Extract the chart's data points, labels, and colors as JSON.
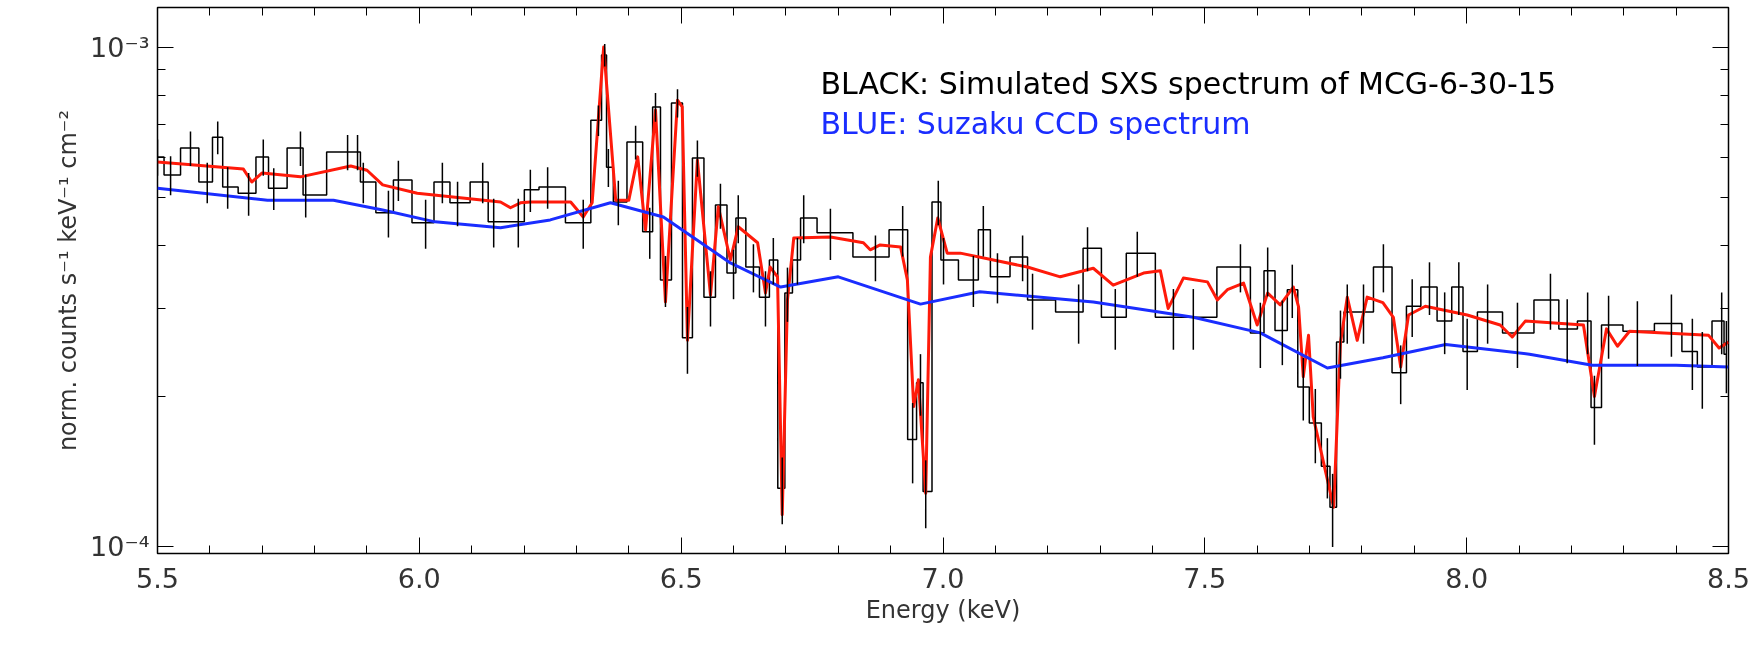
{
  "chart_data": {
    "type": "line",
    "xlabel": "Energy (keV)",
    "ylabel": "norm. counts s⁻¹ keV⁻¹ cm⁻²",
    "log": "y",
    "xlim": [
      5.5,
      8.5
    ],
    "ylim": [
      9.7e-05,
      0.0012
    ],
    "xticks": [
      5.5,
      {
        "value": 5.6,
        "label": null
      },
      {
        "value": 5.7,
        "label": null
      },
      {
        "value": 5.8,
        "label": null
      },
      {
        "value": 5.9,
        "label": null
      },
      "6.0",
      {
        "value": 6.1,
        "label": null
      },
      {
        "value": 6.2,
        "label": null
      },
      {
        "value": 6.3,
        "label": null
      },
      {
        "value": 6.4,
        "label": null
      },
      6.5,
      {
        "value": 6.6,
        "label": null
      },
      {
        "value": 6.7,
        "label": null
      },
      {
        "value": 6.8,
        "label": null
      },
      {
        "value": 6.9,
        "label": null
      },
      {
        "value": 7.0,
        "label": "7.0"
      },
      {
        "value": 7.1,
        "label": null
      },
      {
        "value": 7.2,
        "label": null
      },
      {
        "value": 7.3,
        "label": null
      },
      {
        "value": 7.4,
        "label": null
      },
      7.5,
      {
        "value": 7.6,
        "label": null
      },
      {
        "value": 7.7,
        "label": null
      },
      {
        "value": 7.8,
        "label": null
      },
      {
        "value": 7.9,
        "label": null
      },
      {
        "value": 8.0,
        "label": "8.0"
      },
      {
        "value": 8.1,
        "label": null
      },
      {
        "value": 8.2,
        "label": null
      },
      {
        "value": 8.3,
        "label": null
      },
      {
        "value": 8.4,
        "label": null
      },
      8.5
    ],
    "yticks": [
      {
        "value": 0.0001,
        "label": "10⁻⁴"
      },
      {
        "value": 0.0002,
        "label": null
      },
      {
        "value": 0.0003,
        "label": null
      },
      {
        "value": 0.0004,
        "label": null
      },
      {
        "value": 0.0005,
        "label": null
      },
      {
        "value": 0.0006,
        "label": null
      },
      {
        "value": 0.0007,
        "label": null
      },
      {
        "value": 0.0008,
        "label": null
      },
      {
        "value": 0.0009,
        "label": null
      },
      {
        "value": 0.001,
        "label": "10⁻³"
      }
    ],
    "grid": false,
    "legend": "top right",
    "series": [
      {
        "name": "BLACK: Simulated SXS spectrum of MCG-6-30-15",
        "type": "step",
        "color": "#000000",
        "x": [
          5.5,
          5.525,
          5.563,
          5.595,
          5.615,
          5.634,
          5.674,
          5.702,
          5.722,
          5.773,
          5.783,
          5.863,
          5.882,
          5.893,
          5.941,
          5.96,
          6.012,
          6.044,
          6.073,
          6.121,
          6.142,
          6.189,
          6.212,
          6.245,
          6.313,
          6.342,
          6.354,
          6.361,
          6.38,
          6.413,
          6.44,
          6.451,
          6.47,
          6.493,
          6.512,
          6.531,
          6.556,
          6.575,
          6.6,
          6.609,
          6.638,
          6.661,
          6.676,
          6.693,
          6.703,
          6.722,
          6.734,
          6.785,
          6.871,
          6.923,
          6.942,
          6.957,
          6.967,
          6.991,
          7.001,
          7.058,
          7.077,
          7.104,
          7.152,
          7.171,
          7.259,
          7.276,
          7.329,
          7.371,
          7.44,
          7.478,
          7.568,
          7.606,
          7.62,
          7.648,
          7.667,
          7.688,
          7.711,
          7.734,
          7.744,
          7.759,
          7.772,
          7.803,
          7.841,
          7.874,
          7.896,
          7.929,
          7.958,
          7.985,
          8.001,
          8.04,
          8.097,
          8.16,
          8.192,
          8.231,
          8.244,
          8.271,
          8.326,
          8.391,
          8.431,
          8.45,
          8.487,
          8.496
        ],
        "values": [
          0.000603,
          0.000555,
          0.000628,
          0.000537,
          0.00066,
          0.000525,
          0.00051,
          0.000603,
          0.000522,
          0.000628,
          0.000506,
          0.000617,
          0.000617,
          0.000537,
          0.000466,
          0.000542,
          0.000445,
          0.000537,
          0.000488,
          0.000537,
          0.000447,
          0.000447,
          0.000518,
          0.000525,
          0.000445,
          0.000714,
          0.000964,
          0.000575,
          0.00049,
          0.000646,
          0.000427,
          0.000759,
          0.000342,
          0.000773,
          0.000262,
          0.0006,
          0.000316,
          0.000483,
          0.000353,
          0.000455,
          0.000363,
          0.000316,
          0.000375,
          0.000131,
          0.000322,
          0.000375,
          0.000455,
          0.000425,
          0.00038,
          0.000431,
          0.000164,
          0.000213,
          0.000129,
          0.00049,
          0.000375,
          0.000342,
          0.000431,
          0.000347,
          0.00038,
          0.000312,
          0.000295,
          0.000396,
          0.000288,
          0.000387,
          0.000288,
          0.000288,
          0.000363,
          0.000268,
          0.000357,
          0.000271,
          0.000327,
          0.000209,
          0.000177,
          0.000145,
          0.00012,
          0.000257,
          0.000295,
          0.000295,
          0.000363,
          0.000223,
          0.000303,
          0.000331,
          0.000283,
          0.000331,
          0.000246,
          0.000295,
          0.000268,
          0.000312,
          0.000273,
          0.000283,
          0.00019,
          0.000278,
          0.00027,
          0.00028,
          0.000246,
          0.000229,
          0.000283,
          0.000243
        ],
        "errors": [
          5e-05,
          5e-05,
          5e-05,
          5e-05,
          5e-05,
          5e-05,
          5e-05,
          5e-05,
          5e-05,
          5e-05,
          5e-05,
          5e-05,
          5e-05,
          5e-05,
          5e-05,
          5e-05,
          5e-05,
          5e-05,
          5e-05,
          5e-05,
          5e-05,
          5e-05,
          5e-05,
          5e-05,
          5e-05,
          5e-05,
          5e-05,
          5e-05,
          5e-05,
          5e-05,
          5e-05,
          5e-05,
          4e-05,
          5e-05,
          4e-05,
          5e-05,
          4e-05,
          5e-05,
          4e-05,
          5e-05,
          4e-05,
          4e-05,
          4e-05,
          2e-05,
          4e-05,
          4e-05,
          5e-05,
          5e-05,
          4e-05,
          5e-05,
          3e-05,
          3e-05,
          2e-05,
          5e-05,
          4e-05,
          4e-05,
          5e-05,
          4e-05,
          4e-05,
          4e-05,
          4e-05,
          4e-05,
          4e-05,
          4e-05,
          4e-05,
          4e-05,
          4e-05,
          4e-05,
          4e-05,
          4e-05,
          4e-05,
          3e-05,
          3e-05,
          2e-05,
          2e-05,
          4e-05,
          4e-05,
          4e-05,
          4e-05,
          3e-05,
          4e-05,
          4e-05,
          4e-05,
          4e-05,
          4e-05,
          4e-05,
          4e-05,
          4e-05,
          4e-05,
          4e-05,
          3e-05,
          4e-05,
          4e-05,
          4e-05,
          4e-05,
          4e-05,
          4e-05,
          4e-05
        ]
      },
      {
        "color": "#ff1a0a",
        "x": [
          5.5,
          5.664,
          5.68,
          5.7,
          5.773,
          5.869,
          5.9,
          5.93,
          5.996,
          6.155,
          6.174,
          6.193,
          6.212,
          6.289,
          6.313,
          6.33,
          6.352,
          6.375,
          6.4,
          6.417,
          6.432,
          6.451,
          6.47,
          6.493,
          6.502,
          6.512,
          6.531,
          6.556,
          6.571,
          6.594,
          6.609,
          6.646,
          6.661,
          6.67,
          6.684,
          6.693,
          6.703,
          6.715,
          6.785,
          6.848,
          6.861,
          6.88,
          6.919,
          6.932,
          6.944,
          6.953,
          6.967,
          6.976,
          6.99,
          7.008,
          7.033,
          7.161,
          7.224,
          7.287,
          7.325,
          7.383,
          7.415,
          7.43,
          7.459,
          7.505,
          7.524,
          7.543,
          7.574,
          7.6,
          7.62,
          7.644,
          7.669,
          7.679,
          7.688,
          7.698,
          7.707,
          7.746,
          7.759,
          7.772,
          7.791,
          7.81,
          7.84,
          7.86,
          7.874,
          7.889,
          7.921,
          8.001,
          8.064,
          8.087,
          8.112,
          8.223,
          8.244,
          8.267,
          8.288,
          8.311,
          8.462,
          8.482,
          8.5
        ],
        "values": [
          0.000589,
          0.00057,
          0.000537,
          0.00056,
          0.00055,
          0.000578,
          0.000567,
          0.00053,
          0.00051,
          0.00049,
          0.000477,
          0.000488,
          0.00049,
          0.00049,
          0.000457,
          0.000488,
          0.001,
          0.000494,
          0.000494,
          0.000603,
          0.000431,
          0.000748,
          0.000309,
          0.000783,
          0.000759,
          0.000259,
          0.000594,
          0.000319,
          0.000479,
          0.000375,
          0.000437,
          0.000406,
          0.000322,
          0.000363,
          0.000347,
          0.000116,
          0.000312,
          0.000415,
          0.000417,
          0.000406,
          0.000393,
          0.000402,
          0.000398,
          0.000342,
          0.000191,
          0.000216,
          0.000128,
          0.00038,
          0.000455,
          0.000387,
          0.000387,
          0.000363,
          0.000347,
          0.000361,
          0.000334,
          0.000353,
          0.000357,
          0.0003,
          0.000345,
          0.000339,
          0.000312,
          0.000327,
          0.000337,
          0.000278,
          0.000322,
          0.000305,
          0.000331,
          0.000302,
          0.000219,
          0.000265,
          0.000182,
          0.00012,
          0.000256,
          0.000316,
          0.000259,
          0.000316,
          0.000308,
          0.000288,
          0.000229,
          0.000291,
          0.000303,
          0.000291,
          0.000278,
          0.000263,
          0.000283,
          0.000278,
          0.0002,
          0.000273,
          0.000252,
          0.00027,
          0.000265,
          0.00025,
          0.000257
        ]
      },
      {
        "name": "BLUE:    Suzaku CCD spectrum",
        "type": "line",
        "color": "#1a2dff",
        "x": [
          5.5,
          5.71,
          5.836,
          5.93,
          6.03,
          6.155,
          6.25,
          6.365,
          6.466,
          6.594,
          6.69,
          6.8,
          6.957,
          7.07,
          7.287,
          7.478,
          7.606,
          7.734,
          7.84,
          7.96,
          8.12,
          8.24,
          8.4,
          8.5
        ],
        "values": [
          0.000522,
          0.000494,
          0.000494,
          0.000472,
          0.000447,
          0.000435,
          0.000451,
          0.000488,
          0.000457,
          0.00037,
          0.000331,
          0.000347,
          0.000306,
          0.000324,
          0.000309,
          0.000288,
          0.000268,
          0.000228,
          0.000239,
          0.000254,
          0.000243,
          0.000231,
          0.000231,
          0.000229
        ]
      }
    ]
  }
}
